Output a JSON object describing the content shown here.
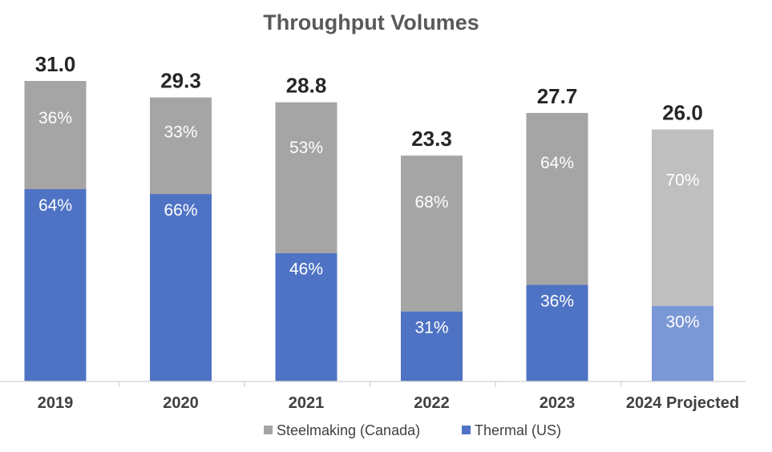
{
  "chart_data": {
    "type": "bar",
    "stacked": true,
    "title": "Throughput Volumes",
    "categories": [
      "2019",
      "2020",
      "2021",
      "2022",
      "2023",
      "2024 Projected"
    ],
    "totals": [
      "31.0",
      "29.3",
      "28.8",
      "23.3",
      "27.7",
      "26.0"
    ],
    "total_values": [
      31.0,
      29.3,
      28.8,
      23.3,
      27.7,
      26.0
    ],
    "series": [
      {
        "name": "Thermal (US)",
        "color": "#4F73C4",
        "projected_color": "#7B98D6",
        "shares": [
          64,
          66,
          46,
          31,
          36,
          30
        ],
        "labels": [
          "64%",
          "66%",
          "46%",
          "31%",
          "36%",
          "30%"
        ]
      },
      {
        "name": "Steelmaking (Canada)",
        "color": "#A5A5A5",
        "projected_color": "#BFBFBF",
        "shares": [
          36,
          33,
          53,
          68,
          64,
          70
        ],
        "labels": [
          "36%",
          "33%",
          "53%",
          "68%",
          "64%",
          "70%"
        ]
      }
    ],
    "projected_index": 5,
    "legend": {
      "placement": "bottom",
      "order": [
        "Steelmaking (Canada)",
        "Thermal (US)"
      ]
    },
    "ylim": [
      0,
      31.0
    ],
    "grid": false
  }
}
